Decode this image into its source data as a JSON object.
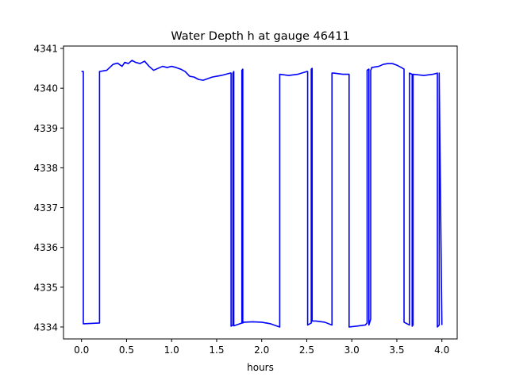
{
  "chart_data": {
    "type": "line",
    "title": "Water Depth h at gauge 46411",
    "xlabel": "hours",
    "ylabel": "",
    "xlim": [
      -0.2,
      4.17
    ],
    "ylim": [
      4333.7,
      4341.06
    ],
    "xticks": [
      0.0,
      0.5,
      1.0,
      1.5,
      2.0,
      2.5,
      3.0,
      3.5,
      4.0
    ],
    "xtick_labels": [
      "0.0",
      "0.5",
      "1.0",
      "1.5",
      "2.0",
      "2.5",
      "3.0",
      "3.5",
      "4.0"
    ],
    "yticks": [
      4334,
      4335,
      4336,
      4337,
      4338,
      4339,
      4340,
      4341
    ],
    "ytick_labels": [
      "4334",
      "4335",
      "4336",
      "4337",
      "4338",
      "4339",
      "4340",
      "4341"
    ],
    "grid": false,
    "series": [
      {
        "name": "",
        "color": "#0000ff",
        "x": [
          0.0,
          0.02,
          0.02,
          0.2,
          0.2,
          0.28,
          0.35,
          0.4,
          0.45,
          0.48,
          0.52,
          0.56,
          0.6,
          0.65,
          0.7,
          0.75,
          0.8,
          0.85,
          0.9,
          0.95,
          1.0,
          1.05,
          1.1,
          1.15,
          1.2,
          1.25,
          1.3,
          1.35,
          1.4,
          1.45,
          1.5,
          1.55,
          1.6,
          1.65,
          1.66,
          1.66,
          1.68,
          1.68,
          1.69,
          1.69,
          1.78,
          1.78,
          1.79,
          1.79,
          1.8,
          1.8,
          1.9,
          2.0,
          2.1,
          2.2,
          2.2,
          2.3,
          2.4,
          2.5,
          2.51,
          2.51,
          2.55,
          2.55,
          2.56,
          2.56,
          2.6,
          2.7,
          2.78,
          2.78,
          2.8,
          2.9,
          2.97,
          2.97,
          3.05,
          3.15,
          3.17,
          3.17,
          3.19,
          3.19,
          3.21,
          3.21,
          3.22,
          3.22,
          3.3,
          3.35,
          3.4,
          3.45,
          3.5,
          3.55,
          3.58,
          3.58,
          3.64,
          3.64,
          3.67,
          3.67,
          3.68,
          3.68,
          3.8,
          3.9,
          3.95,
          3.95,
          3.97,
          3.97,
          4.0
        ],
        "y": [
          4340.42,
          4340.42,
          4334.08,
          4334.1,
          4340.42,
          4340.45,
          4340.6,
          4340.63,
          4340.55,
          4340.65,
          4340.62,
          4340.7,
          4340.65,
          4340.62,
          4340.68,
          4340.55,
          4340.45,
          4340.5,
          4340.55,
          4340.52,
          4340.55,
          4340.52,
          4340.48,
          4340.42,
          4340.3,
          4340.28,
          4340.22,
          4340.2,
          4340.24,
          4340.28,
          4340.3,
          4340.32,
          4340.35,
          4340.38,
          4340.38,
          4334.02,
          4334.05,
          4340.38,
          4340.42,
          4334.03,
          4334.1,
          4340.45,
          4340.48,
          4334.1,
          4334.12,
          4334.12,
          4334.13,
          4334.12,
          4334.08,
          4334.0,
          4340.35,
          4340.32,
          4340.35,
          4340.42,
          4340.42,
          4334.05,
          4334.1,
          4340.48,
          4340.5,
          4334.15,
          4334.15,
          4334.12,
          4334.05,
          4340.38,
          4340.38,
          4340.35,
          4340.35,
          4334.0,
          4334.02,
          4334.05,
          4334.1,
          4340.45,
          4340.48,
          4334.05,
          4334.2,
          4340.45,
          4340.5,
          4340.52,
          4340.55,
          4340.6,
          4340.62,
          4340.62,
          4340.58,
          4340.52,
          4340.48,
          4334.12,
          4334.05,
          4340.38,
          4340.35,
          4334.02,
          4334.05,
          4340.35,
          4340.32,
          4340.35,
          4340.38,
          4334.0,
          4334.05,
          4340.38,
          4334.05
        ]
      }
    ]
  }
}
